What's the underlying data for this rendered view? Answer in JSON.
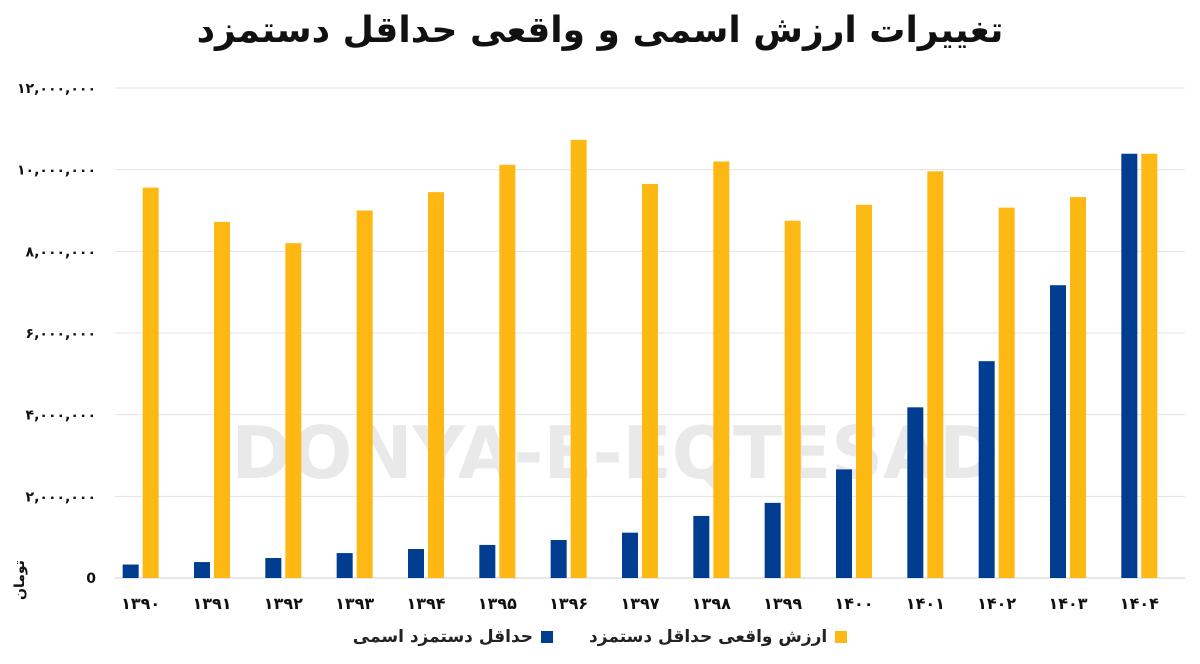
{
  "chart_data": {
    "type": "bar",
    "title": "تغییرات ارزش اسمی و واقعی حداقل دستمزد",
    "ylabel": "تومان",
    "xlabel": "",
    "ylim": [
      0,
      12000000
    ],
    "y_ticks": [
      0,
      2000000,
      4000000,
      6000000,
      8000000,
      10000000,
      12000000
    ],
    "y_tick_labels": [
      "0",
      "۲,۰۰۰,۰۰۰",
      "۴,۰۰۰,۰۰۰",
      "۶,۰۰۰,۰۰۰",
      "۸,۰۰۰,۰۰۰",
      "۱۰,۰۰۰,۰۰۰",
      "۱۲,۰۰۰,۰۰۰"
    ],
    "categories": [
      "۱۳۹۰",
      "۱۳۹۱",
      "۱۳۹۲",
      "۱۳۹۳",
      "۱۳۹۴",
      "۱۳۹۵",
      "۱۳۹۶",
      "۱۳۹۷",
      "۱۳۹۸",
      "۱۳۹۹",
      "۱۴۰۰",
      "۱۴۰۱",
      "۱۴۰۲",
      "۱۴۰۳",
      "۱۴۰۴"
    ],
    "series": [
      {
        "name": "حداقل دستمزد اسمی",
        "color": "#003C8F",
        "values": [
          330000,
          390000,
          490000,
          610000,
          710000,
          810000,
          930000,
          1110000,
          1520000,
          1840000,
          2660000,
          4180000,
          5310000,
          7170000,
          10390000
        ]
      },
      {
        "name": "ارزش واقعی حداقل دستمزد",
        "color": "#FDB813",
        "values": [
          9560000,
          8720000,
          8200000,
          9000000,
          9450000,
          10120000,
          10730000,
          9650000,
          10200000,
          8750000,
          9140000,
          9960000,
          9070000,
          9330000,
          10390000
        ]
      }
    ],
    "grid": true,
    "legend": "bottom-center",
    "watermark": "DONYA-E-EQTESAD"
  }
}
